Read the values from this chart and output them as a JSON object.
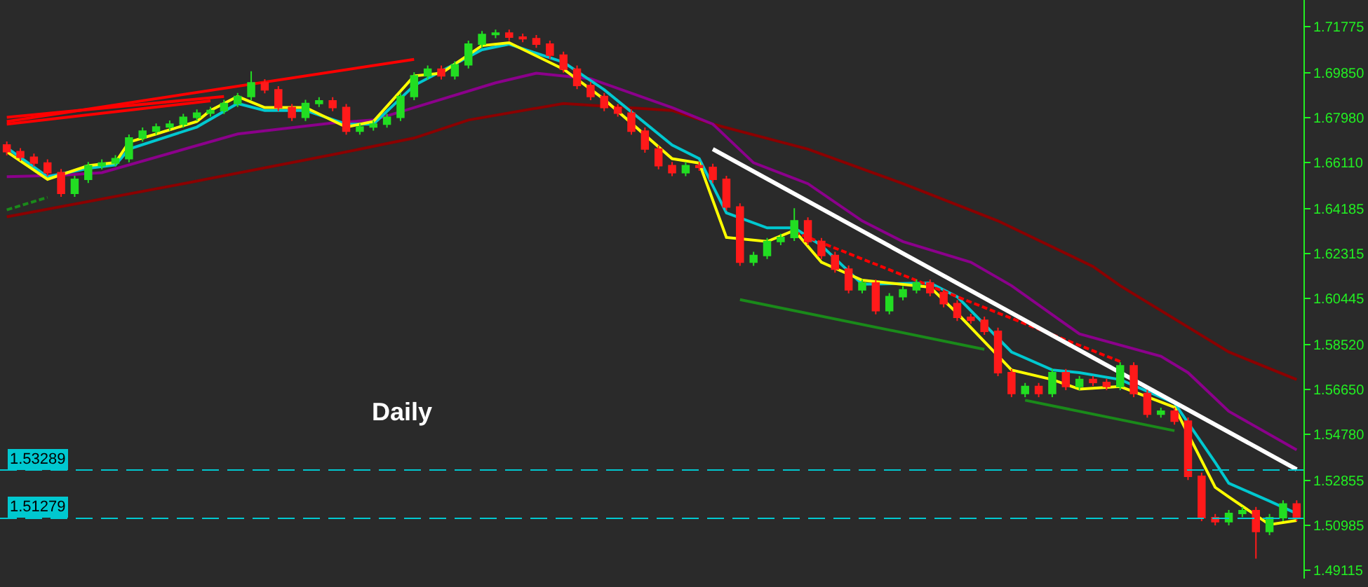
{
  "chart_data": {
    "type": "candlestick",
    "tick_labels": "y",
    "categories": [
      null,
      null,
      null,
      null,
      null,
      null,
      null,
      null,
      null,
      null,
      null,
      null,
      null,
      null,
      null,
      null,
      null,
      null,
      null,
      null,
      null,
      null,
      null,
      null,
      null,
      null,
      null,
      null,
      null,
      null,
      null,
      null,
      null,
      null,
      null,
      null,
      null,
      null,
      null,
      null,
      null,
      null,
      null,
      null,
      null,
      null,
      null,
      null,
      null,
      null,
      null,
      null,
      null,
      null,
      null,
      null,
      null,
      null,
      null,
      null,
      null,
      null,
      null,
      null,
      null,
      null,
      null,
      null,
      null,
      null,
      null,
      null,
      null,
      null,
      null,
      null,
      null,
      null,
      null,
      null,
      null,
      null,
      null,
      null,
      null,
      null,
      null,
      null,
      null,
      null,
      null,
      null,
      null,
      null,
      null,
      null
    ],
    "ohlc": [
      [
        1.6683,
        1.6698,
        1.664,
        1.6655
      ],
      [
        1.6655,
        1.667,
        1.6617,
        1.6632
      ],
      [
        1.6632,
        1.6647,
        1.6593,
        1.6608
      ],
      [
        1.6608,
        1.6623,
        1.6553,
        1.6568
      ],
      [
        1.6568,
        1.6583,
        1.6467,
        1.6482
      ],
      [
        1.6482,
        1.6555,
        1.6467,
        1.654
      ],
      [
        1.654,
        1.6612,
        1.6525,
        1.6597
      ],
      [
        1.6597,
        1.6623,
        1.6582,
        1.6608
      ],
      [
        1.6608,
        1.6641,
        1.6593,
        1.6626
      ],
      [
        1.6626,
        1.6727,
        1.6611,
        1.6712
      ],
      [
        1.6712,
        1.6756,
        1.6697,
        1.6741
      ],
      [
        1.6741,
        1.6773,
        1.6726,
        1.6758
      ],
      [
        1.6758,
        1.6785,
        1.6743,
        1.677
      ],
      [
        1.677,
        1.6813,
        1.6755,
        1.6798
      ],
      [
        1.6798,
        1.6831,
        1.6783,
        1.6816
      ],
      [
        1.6816,
        1.6842,
        1.6801,
        1.6827
      ],
      [
        1.6827,
        1.6871,
        1.6812,
        1.6856
      ],
      [
        1.6856,
        1.69,
        1.6841,
        1.6885
      ],
      [
        1.6885,
        1.699,
        1.687,
        1.6942
      ],
      [
        1.6942,
        1.6957,
        1.6898,
        1.6913
      ],
      [
        1.6913,
        1.6928,
        1.6824,
        1.6839
      ],
      [
        1.6839,
        1.6854,
        1.6783,
        1.6798
      ],
      [
        1.6798,
        1.6871,
        1.6783,
        1.6856
      ],
      [
        1.6856,
        1.6882,
        1.6841,
        1.6867
      ],
      [
        1.6867,
        1.6882,
        1.6824,
        1.6839
      ],
      [
        1.6839,
        1.6854,
        1.6726,
        1.6741
      ],
      [
        1.6741,
        1.6773,
        1.6726,
        1.6758
      ],
      [
        1.6758,
        1.6785,
        1.6743,
        1.677
      ],
      [
        1.677,
        1.6813,
        1.6755,
        1.6798
      ],
      [
        1.6798,
        1.69,
        1.6783,
        1.6885
      ],
      [
        1.6885,
        1.6986,
        1.687,
        1.6971
      ],
      [
        1.6971,
        1.7014,
        1.6956,
        1.6999
      ],
      [
        1.6999,
        1.7014,
        1.6956,
        1.6971
      ],
      [
        1.6971,
        1.7032,
        1.6956,
        1.7017
      ],
      [
        1.7017,
        1.7118,
        1.7002,
        1.7103
      ],
      [
        1.7103,
        1.7158,
        1.7088,
        1.7143
      ],
      [
        1.7143,
        1.7164,
        1.7128,
        1.7149
      ],
      [
        1.7149,
        1.7164,
        1.7117,
        1.7132
      ],
      [
        1.7132,
        1.7147,
        1.7111,
        1.7126
      ],
      [
        1.7126,
        1.7141,
        1.7088,
        1.7103
      ],
      [
        1.7103,
        1.7118,
        1.7042,
        1.7057
      ],
      [
        1.7057,
        1.7072,
        1.6984,
        1.6999
      ],
      [
        1.6999,
        1.7014,
        1.6916,
        1.6931
      ],
      [
        1.6931,
        1.6946,
        1.687,
        1.6885
      ],
      [
        1.6885,
        1.69,
        1.6824,
        1.6839
      ],
      [
        1.6839,
        1.6854,
        1.6801,
        1.6816
      ],
      [
        1.6816,
        1.6831,
        1.6726,
        1.6741
      ],
      [
        1.6741,
        1.6756,
        1.6651,
        1.6666
      ],
      [
        1.6666,
        1.6681,
        1.6582,
        1.6597
      ],
      [
        1.6597,
        1.6612,
        1.6553,
        1.6568
      ],
      [
        1.6568,
        1.6612,
        1.6553,
        1.6597
      ],
      [
        1.6597,
        1.6612,
        1.6575,
        1.659
      ],
      [
        1.659,
        1.6605,
        1.6525,
        1.654
      ],
      [
        1.654,
        1.6555,
        1.641,
        1.6425
      ],
      [
        1.6425,
        1.644,
        1.618,
        1.6195
      ],
      [
        1.6195,
        1.6238,
        1.618,
        1.6223
      ],
      [
        1.6223,
        1.6296,
        1.6208,
        1.6281
      ],
      [
        1.6281,
        1.6313,
        1.6266,
        1.6298
      ],
      [
        1.6298,
        1.642,
        1.6283,
        1.6367
      ],
      [
        1.6367,
        1.6382,
        1.6266,
        1.6281
      ],
      [
        1.6281,
        1.6296,
        1.6208,
        1.6223
      ],
      [
        1.6223,
        1.6238,
        1.6151,
        1.6166
      ],
      [
        1.6166,
        1.6181,
        1.6065,
        1.608
      ],
      [
        1.608,
        1.6123,
        1.6065,
        1.6108
      ],
      [
        1.6108,
        1.6123,
        1.5978,
        1.5993
      ],
      [
        1.5993,
        1.6066,
        1.5978,
        1.6051
      ],
      [
        1.6051,
        1.6095,
        1.6036,
        1.608
      ],
      [
        1.608,
        1.6123,
        1.6065,
        1.6108
      ],
      [
        1.6108,
        1.6123,
        1.6053,
        1.6068
      ],
      [
        1.6068,
        1.6083,
        1.6007,
        1.6022
      ],
      [
        1.6022,
        1.6037,
        1.595,
        1.5965
      ],
      [
        1.5965,
        1.598,
        1.5938,
        1.5953
      ],
      [
        1.5953,
        1.5968,
        1.5892,
        1.5907
      ],
      [
        1.5907,
        1.5922,
        1.572,
        1.5735
      ],
      [
        1.5735,
        1.575,
        1.5633,
        1.5648
      ],
      [
        1.5648,
        1.5692,
        1.5633,
        1.5677
      ],
      [
        1.5677,
        1.5692,
        1.5633,
        1.5648
      ],
      [
        1.5648,
        1.575,
        1.5633,
        1.5735
      ],
      [
        1.5735,
        1.575,
        1.5662,
        1.5677
      ],
      [
        1.5677,
        1.5721,
        1.5662,
        1.5706
      ],
      [
        1.5706,
        1.5721,
        1.5679,
        1.5694
      ],
      [
        1.5694,
        1.5709,
        1.5662,
        1.5677
      ],
      [
        1.5677,
        1.5778,
        1.5662,
        1.5763
      ],
      [
        1.5763,
        1.5778,
        1.5633,
        1.5648
      ],
      [
        1.5648,
        1.5663,
        1.5547,
        1.5562
      ],
      [
        1.5562,
        1.5589,
        1.5547,
        1.5574
      ],
      [
        1.5574,
        1.5589,
        1.5518,
        1.5533
      ],
      [
        1.5533,
        1.5548,
        1.5288,
        1.5303
      ],
      [
        1.5303,
        1.5318,
        1.5116,
        1.5131
      ],
      [
        1.5131,
        1.5146,
        1.5099,
        1.5114
      ],
      [
        1.5114,
        1.5163,
        1.5099,
        1.5148
      ],
      [
        1.5148,
        1.5175,
        1.5133,
        1.516
      ],
      [
        1.516,
        1.5175,
        1.496,
        1.5073
      ],
      [
        1.5073,
        1.5146,
        1.5058,
        1.5131
      ],
      [
        1.5131,
        1.5203,
        1.5116,
        1.5188
      ],
      [
        1.5188,
        1.5203,
        1.5116,
        1.5131
      ]
    ],
    "colors": [
      "#ff1a1a",
      "#ff1a1a",
      "#ff1a1a",
      "#ff1a1a",
      "#ff1a1a",
      "#22dd22",
      "#22dd22",
      "#22dd22",
      "#22dd22",
      "#22dd22",
      "#22dd22",
      "#22dd22",
      "#22dd22",
      "#22dd22",
      "#22dd22",
      "#22dd22",
      "#22dd22",
      "#22dd22",
      "#22dd22",
      "#ff1a1a",
      "#ff1a1a",
      "#ff1a1a",
      "#22dd22",
      "#22dd22",
      "#ff1a1a",
      "#ff1a1a",
      "#22dd22",
      "#22dd22",
      "#22dd22",
      "#22dd22",
      "#22dd22",
      "#22dd22",
      "#ff1a1a",
      "#22dd22",
      "#22dd22",
      "#22dd22",
      "#22dd22",
      "#ff1a1a",
      "#ff1a1a",
      "#ff1a1a",
      "#ff1a1a",
      "#ff1a1a",
      "#ff1a1a",
      "#ff1a1a",
      "#ff1a1a",
      "#ff1a1a",
      "#ff1a1a",
      "#ff1a1a",
      "#ff1a1a",
      "#ff1a1a",
      "#22dd22",
      "#ff1a1a",
      "#ff1a1a",
      "#ff1a1a",
      "#ff1a1a",
      "#22dd22",
      "#22dd22",
      "#22dd22",
      "#22dd22",
      "#ff1a1a",
      "#ff1a1a",
      "#ff1a1a",
      "#ff1a1a",
      "#22dd22",
      "#ff1a1a",
      "#22dd22",
      "#22dd22",
      "#22dd22",
      "#ff1a1a",
      "#ff1a1a",
      "#ff1a1a",
      "#ff1a1a",
      "#ff1a1a",
      "#ff1a1a",
      "#ff1a1a",
      "#22dd22",
      "#ff1a1a",
      "#22dd22",
      "#ff1a1a",
      "#22dd22",
      "#ff1a1a",
      "#ff1a1a",
      "#22dd22",
      "#ff1a1a",
      "#ff1a1a",
      "#22dd22",
      "#ff1a1a",
      "#ff1a1a",
      "#ff1a1a",
      "#ff1a1a",
      "#22dd22",
      "#22dd22",
      "#ff1a1a",
      "#22dd22",
      "#22dd22",
      "#ff1a1a"
    ],
    "series": [
      {
        "type": "line",
        "color": "#8b0000",
        "values": [
          1.6384,
          null,
          null,
          null,
          null,
          null,
          null,
          null,
          null,
          null,
          null,
          null,
          null,
          1.6522,
          null,
          null,
          null,
          null,
          null,
          null,
          null,
          null,
          null,
          null,
          1.6643,
          null,
          null,
          null,
          null,
          null,
          1.6712,
          null,
          null,
          null,
          1.6787,
          null,
          null,
          null,
          null,
          null,
          null,
          1.6856,
          null,
          null,
          null,
          null,
          null,
          null,
          null,
          1.6827,
          null,
          null,
          1.677,
          null,
          null,
          null,
          null,
          null,
          null,
          1.6666,
          null,
          null,
          null,
          null,
          null,
          null,
          1.6522,
          null,
          null,
          null,
          null,
          null,
          null,
          1.6367,
          null,
          null,
          null,
          null,
          null,
          null,
          1.6177,
          null,
          1.6097,
          null,
          null,
          null,
          null,
          null,
          null,
          null,
          1.5821,
          null,
          null,
          null,
          null,
          1.5706
        ]
      },
      {
        "type": "line",
        "color": "#8b008b",
        "values": [
          1.6551,
          null,
          null,
          null,
          1.6557,
          null,
          null,
          1.6568,
          null,
          null,
          null,
          null,
          null,
          null,
          null,
          null,
          null,
          1.6729,
          null,
          null,
          null,
          null,
          null,
          null,
          1.6775,
          null,
          null,
          1.6787,
          null,
          null,
          1.6839,
          null,
          null,
          null,
          null,
          null,
          1.6942,
          null,
          null,
          1.6982,
          null,
          null,
          null,
          1.6959,
          null,
          null,
          null,
          null,
          null,
          1.6839,
          null,
          null,
          1.677,
          null,
          null,
          1.6609,
          null,
          null,
          null,
          1.6522,
          null,
          null,
          null,
          1.6367,
          null,
          null,
          1.6281,
          null,
          null,
          null,
          null,
          1.6195,
          null,
          null,
          1.6097,
          null,
          null,
          null,
          null,
          1.5896,
          null,
          null,
          null,
          null,
          null,
          1.5803,
          null,
          1.5735,
          null,
          null,
          1.5574,
          null,
          null,
          null,
          null,
          1.5413
        ]
      },
      {
        "type": "line",
        "color": "#00c8d0",
        "values": [
          1.6672,
          null,
          null,
          1.6551,
          null,
          null,
          1.6586,
          null,
          1.66,
          1.6666,
          null,
          null,
          null,
          null,
          1.6758,
          null,
          null,
          1.6856,
          null,
          1.6827,
          null,
          null,
          1.6827,
          null,
          null,
          1.677,
          null,
          1.677,
          null,
          null,
          1.6931,
          null,
          null,
          null,
          null,
          1.708,
          null,
          1.7103,
          null,
          null,
          null,
          1.7028,
          null,
          null,
          1.6913,
          null,
          null,
          null,
          null,
          1.6683,
          null,
          1.6626,
          null,
          1.64,
          null,
          null,
          1.6338,
          null,
          1.6338,
          null,
          1.6264,
          null,
          null,
          1.6103,
          null,
          null,
          null,
          null,
          1.6108,
          null,
          1.6051,
          null,
          null,
          null,
          1.5821,
          null,
          null,
          1.5746,
          null,
          1.5735,
          null,
          null,
          1.5706,
          null,
          null,
          null,
          1.5608,
          null,
          null,
          1.5361,
          1.5274,
          null,
          null,
          1.52,
          null,
          1.5148
        ]
      },
      {
        "type": "line",
        "color": "#ffff00",
        "values": [
          1.6655,
          null,
          null,
          1.654,
          null,
          null,
          1.6597,
          null,
          1.661,
          1.6695,
          null,
          1.6729,
          null,
          null,
          1.6781,
          1.6827,
          null,
          1.6885,
          null,
          1.6839,
          null,
          null,
          1.6839,
          null,
          null,
          1.6758,
          null,
          1.6781,
          null,
          null,
          1.6971,
          null,
          1.6982,
          null,
          null,
          1.7097,
          null,
          1.7109,
          null,
          null,
          null,
          1.6999,
          null,
          null,
          1.6873,
          null,
          null,
          null,
          null,
          1.6626,
          null,
          1.6608,
          null,
          1.6298,
          null,
          null,
          1.6281,
          null,
          1.6327,
          null,
          1.6195,
          null,
          null,
          1.612,
          null,
          null,
          null,
          null,
          1.6091,
          null,
          1.5982,
          null,
          null,
          null,
          1.5746,
          null,
          null,
          1.5706,
          null,
          1.5666,
          null,
          null,
          1.5677,
          null,
          null,
          null,
          1.5591,
          null,
          null,
          1.5257,
          1.5217,
          null,
          null,
          1.5102,
          null,
          1.5119
        ]
      },
      {
        "type": "line",
        "color": "#ff0000",
        "values": [
          1.6781,
          null,
          null,
          null,
          null,
          null,
          null,
          null,
          null,
          null,
          null,
          null,
          null,
          null,
          null,
          null,
          null,
          null,
          null,
          null,
          null,
          null,
          null,
          null,
          null,
          null,
          null,
          null,
          null,
          null,
          1.704,
          null,
          null,
          null,
          null,
          null,
          null,
          null,
          null,
          null,
          null,
          null,
          null,
          null,
          null,
          null,
          null,
          null,
          null,
          null,
          null,
          null,
          null,
          null,
          null,
          null,
          null,
          null,
          null,
          null,
          null,
          null,
          null,
          null,
          null,
          null,
          null,
          null,
          null,
          null,
          null,
          null,
          null,
          null,
          null,
          null,
          null,
          null,
          null,
          null,
          null,
          null,
          null,
          null,
          null,
          null,
          null,
          null,
          null,
          null,
          null,
          null,
          null,
          null,
          null,
          null
        ]
      },
      {
        "type": "line",
        "color": "#ff0000",
        "values": [
          1.6798,
          null,
          null,
          null,
          null,
          null,
          null,
          null,
          null,
          null,
          null,
          null,
          null,
          null,
          null,
          null,
          1.6885,
          null,
          null,
          null,
          null,
          null,
          null,
          null,
          null,
          null,
          null,
          null,
          null,
          null,
          null,
          null,
          null,
          null,
          null,
          null,
          null,
          null,
          null,
          null,
          null,
          null,
          null,
          null,
          null,
          null,
          null,
          null,
          null,
          null,
          null,
          null,
          null,
          null,
          null,
          null,
          null,
          null,
          null,
          null,
          null,
          null,
          null,
          null,
          null,
          null,
          null,
          null,
          null,
          null,
          null,
          null,
          null,
          null,
          null,
          null,
          null,
          null,
          null,
          null,
          null,
          null,
          null,
          null,
          null,
          null,
          null,
          null,
          null,
          null,
          null,
          null,
          null,
          null,
          null,
          null
        ]
      },
      {
        "type": "line",
        "color": "#ff0000",
        "values": [
          1.677,
          null,
          null,
          null,
          null,
          null,
          null,
          null,
          null,
          null,
          null,
          null,
          null,
          null,
          null,
          1.6867,
          null,
          null,
          null,
          null,
          null,
          null,
          null,
          null,
          null,
          null,
          null,
          null,
          null,
          null,
          null,
          null,
          null,
          null,
          null,
          null,
          null,
          null,
          null,
          null,
          null,
          null,
          null,
          null,
          null,
          null,
          null,
          null,
          null,
          null,
          null,
          null,
          null,
          null,
          null,
          null,
          null,
          null,
          null,
          null,
          null,
          null,
          null,
          null,
          null,
          null,
          null,
          null,
          null,
          null,
          null,
          null,
          null,
          null,
          null,
          null,
          null,
          null,
          null,
          null,
          null,
          null,
          null,
          null,
          null,
          null,
          null,
          null,
          null,
          null,
          null,
          null,
          null,
          null,
          null,
          null
        ]
      },
      {
        "type": "line",
        "color": "#ff0000",
        "line_style": "dashed",
        "values": [
          null,
          null,
          null,
          null,
          null,
          null,
          null,
          null,
          null,
          null,
          null,
          null,
          null,
          null,
          null,
          null,
          null,
          null,
          null,
          null,
          null,
          null,
          null,
          null,
          null,
          null,
          null,
          null,
          null,
          null,
          null,
          null,
          null,
          null,
          null,
          null,
          null,
          null,
          null,
          null,
          null,
          null,
          null,
          null,
          null,
          null,
          null,
          null,
          null,
          null,
          null,
          null,
          null,
          null,
          null,
          null,
          null,
          null,
          1.6321,
          null,
          null,
          null,
          null,
          null,
          null,
          null,
          null,
          null,
          null,
          null,
          null,
          null,
          null,
          null,
          null,
          null,
          null,
          null,
          null,
          null,
          null,
          null,
          1.5781,
          null,
          null,
          null,
          null,
          null,
          null,
          null,
          null,
          null,
          null,
          null,
          null,
          null
        ]
      },
      {
        "type": "line",
        "color": "#1a8a1a",
        "line_style": "dashed",
        "values": [
          1.6413,
          null,
          null,
          1.6465,
          null,
          null,
          null,
          null,
          null,
          null,
          null,
          null,
          null,
          null,
          null,
          null,
          null,
          null,
          null,
          null,
          null,
          null,
          null,
          null,
          null,
          null,
          null,
          null,
          null,
          null,
          null,
          null,
          null,
          null,
          null,
          null,
          null,
          null,
          null,
          null,
          null,
          null,
          null,
          null,
          null,
          null,
          null,
          null,
          null,
          null,
          null,
          null,
          null,
          null,
          null,
          null,
          null,
          null,
          null,
          null,
          null,
          null,
          null,
          null,
          null,
          null,
          null,
          null,
          null,
          null,
          null,
          null,
          null,
          null,
          null,
          null,
          null,
          null,
          null,
          null,
          null,
          null,
          null,
          null,
          null,
          null,
          null,
          null,
          null,
          null,
          null,
          null,
          null,
          null,
          null,
          null
        ]
      },
      {
        "type": "line",
        "color": "#1a8a1a",
        "values": [
          null,
          null,
          null,
          null,
          null,
          null,
          null,
          null,
          null,
          null,
          null,
          null,
          null,
          null,
          null,
          null,
          null,
          null,
          null,
          null,
          null,
          null,
          null,
          null,
          null,
          null,
          null,
          null,
          null,
          null,
          null,
          null,
          null,
          null,
          null,
          null,
          null,
          null,
          null,
          null,
          null,
          null,
          null,
          null,
          null,
          null,
          null,
          null,
          null,
          null,
          null,
          null,
          null,
          null,
          1.6039,
          null,
          null,
          null,
          null,
          null,
          null,
          null,
          null,
          null,
          null,
          null,
          null,
          null,
          null,
          null,
          null,
          null,
          1.5832,
          null,
          null,
          null,
          null,
          null,
          null,
          null,
          null,
          null,
          null,
          null,
          null,
          null,
          null,
          null,
          null,
          null,
          null,
          null,
          null,
          null,
          null,
          null
        ]
      },
      {
        "type": "line",
        "color": "#1a8a1a",
        "values": [
          null,
          null,
          null,
          null,
          null,
          null,
          null,
          null,
          null,
          null,
          null,
          null,
          null,
          null,
          null,
          null,
          null,
          null,
          null,
          null,
          null,
          null,
          null,
          null,
          null,
          null,
          null,
          null,
          null,
          null,
          null,
          null,
          null,
          null,
          null,
          null,
          null,
          null,
          null,
          null,
          null,
          null,
          null,
          null,
          null,
          null,
          null,
          null,
          null,
          null,
          null,
          null,
          null,
          null,
          null,
          null,
          null,
          null,
          null,
          null,
          null,
          null,
          null,
          null,
          null,
          null,
          null,
          null,
          null,
          null,
          null,
          null,
          null,
          null,
          null,
          1.562,
          null,
          null,
          null,
          null,
          null,
          null,
          null,
          null,
          null,
          null,
          1.5493,
          null,
          null,
          null,
          null,
          null,
          null,
          null,
          null,
          null
        ]
      },
      {
        "type": "line",
        "color": "#ffffff",
        "values": [
          null,
          null,
          null,
          null,
          null,
          null,
          null,
          null,
          null,
          null,
          null,
          null,
          null,
          null,
          null,
          null,
          null,
          null,
          null,
          null,
          null,
          null,
          null,
          null,
          null,
          null,
          null,
          null,
          null,
          null,
          null,
          null,
          null,
          null,
          null,
          null,
          null,
          null,
          null,
          null,
          null,
          null,
          null,
          null,
          null,
          null,
          null,
          null,
          null,
          null,
          null,
          null,
          1.6666,
          null,
          null,
          null,
          null,
          null,
          null,
          null,
          null,
          null,
          null,
          null,
          null,
          null,
          null,
          null,
          null,
          null,
          null,
          null,
          null,
          null,
          null,
          null,
          null,
          null,
          null,
          null,
          null,
          null,
          null,
          null,
          null,
          null,
          null,
          null,
          null,
          null,
          null,
          null,
          null,
          null,
          null,
          1.5332
        ]
      }
    ],
    "ylim": [
      1.4877,
      1.7287
    ],
    "yticks": [
      1.71775,
      {
        "value": 1.6985,
        "label": "1.69850"
      },
      {
        "value": 1.6798,
        "label": "1.67980"
      },
      {
        "value": 1.6611,
        "label": "1.66110"
      },
      1.64185,
      1.62315,
      1.60445,
      {
        "value": 1.5852,
        "label": "1.58520"
      },
      {
        "value": 1.5665,
        "label": "1.56650"
      },
      {
        "value": 1.5478,
        "label": "1.54780"
      },
      1.52855,
      1.50985,
      1.49115
    ],
    "ref_lines": [
      {
        "axis": "y",
        "value": 1.53289,
        "label": "1.53289",
        "color": "#00c8d0",
        "line_style": "dashed"
      },
      {
        "axis": "y",
        "value": 1.51279,
        "label": "1.51279",
        "color": "#00c8d0",
        "line_style": "dashed"
      }
    ],
    "annotations": [
      "Daily"
    ]
  }
}
